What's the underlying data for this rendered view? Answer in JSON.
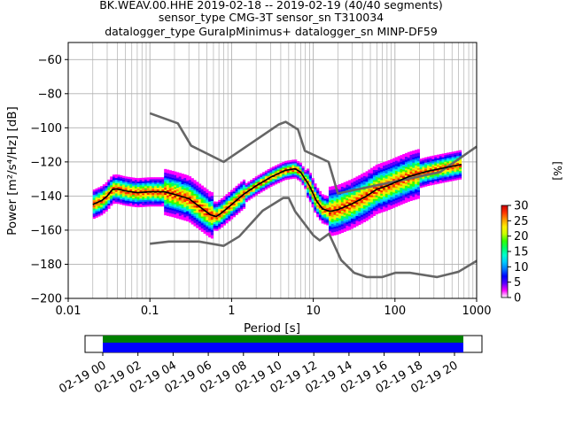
{
  "title_lines": [
    "BK.WEAV.00.HHE   2019-02-18 -- 2019-02-19  (40/40 segments)",
    "sensor_type CMG-3T sensor_sn T310034",
    "datalogger_type GuralpMinimus+ datalogger_sn MINP-DF59"
  ],
  "chart_data": {
    "type": "heatmap",
    "xlabel": "Period [s]",
    "ylabel": "Power [m²/s⁴/Hz] [dB]",
    "x_scale": "log",
    "xlim": [
      0.01,
      1000
    ],
    "ylim": [
      -200,
      -50
    ],
    "x_tick_labels": [
      "0.01",
      "0.1",
      "1",
      "10",
      "100",
      "1000"
    ],
    "x_ticks": [
      0.01,
      0.1,
      1,
      10,
      100,
      1000
    ],
    "y_ticks": [
      -200,
      -180,
      -160,
      -140,
      -120,
      -100,
      -80,
      -60
    ],
    "y_tick_labels": [
      "−200",
      "−180",
      "−160",
      "−140",
      "−120",
      "−100",
      "−80",
      "−60"
    ],
    "grid": true,
    "colorbar": {
      "label": "[%]",
      "ticks": [
        0,
        5,
        10,
        15,
        20,
        25,
        30
      ],
      "tick_labels": [
        "0",
        "5",
        "10",
        "15",
        "20",
        "25",
        "30"
      ],
      "range": [
        0,
        30
      ],
      "colormap": [
        "#ffffff",
        "#ff00ff",
        "#5a00ff",
        "#0000ff",
        "#0077ff",
        "#00ccff",
        "#00ffcc",
        "#00ff66",
        "#33ff00",
        "#ccff00",
        "#ffee00",
        "#ff9900",
        "#ff3300",
        "#cc0000"
      ]
    },
    "noise_model_high": [
      [
        0.1,
        -91.5
      ],
      [
        0.22,
        -97.4
      ],
      [
        0.32,
        -110.5
      ],
      [
        0.8,
        -120
      ],
      [
        3.8,
        -98
      ],
      [
        4.6,
        -96.5
      ],
      [
        6.5,
        -101
      ],
      [
        7.9,
        -113.5
      ],
      [
        15.4,
        -120
      ],
      [
        20,
        -138.5
      ],
      [
        354.8,
        -126
      ],
      [
        1000,
        -111
      ]
    ],
    "noise_model_low": [
      [
        0.1,
        -168
      ],
      [
        0.17,
        -166.7
      ],
      [
        0.4,
        -166.7
      ],
      [
        0.8,
        -169.2
      ],
      [
        1.24,
        -163.7
      ],
      [
        2.4,
        -148.6
      ],
      [
        4.3,
        -141.1
      ],
      [
        5,
        -141.1
      ],
      [
        6,
        -149
      ],
      [
        10,
        -163
      ],
      [
        12,
        -166
      ],
      [
        15.6,
        -162.1
      ],
      [
        21.9,
        -177.5
      ],
      [
        31.6,
        -185
      ],
      [
        45,
        -187.5
      ],
      [
        70,
        -187.5
      ],
      [
        101,
        -185
      ],
      [
        154,
        -185
      ],
      [
        328,
        -187.5
      ],
      [
        600,
        -184.4
      ],
      [
        1000,
        -178
      ]
    ],
    "mean_curve": [
      [
        0.02,
        -145
      ],
      [
        0.026,
        -142.5
      ],
      [
        0.03,
        -140
      ],
      [
        0.035,
        -136
      ],
      [
        0.04,
        -135.8
      ],
      [
        0.05,
        -137
      ],
      [
        0.07,
        -138
      ],
      [
        0.1,
        -137.5
      ],
      [
        0.15,
        -137.5
      ],
      [
        0.2,
        -139
      ],
      [
        0.3,
        -141.5
      ],
      [
        0.4,
        -146
      ],
      [
        0.55,
        -151
      ],
      [
        0.65,
        -152
      ],
      [
        0.75,
        -150
      ],
      [
        1,
        -145
      ],
      [
        1.4,
        -139
      ],
      [
        2,
        -134
      ],
      [
        3,
        -129
      ],
      [
        4.5,
        -125
      ],
      [
        6,
        -124
      ],
      [
        7,
        -126
      ],
      [
        9,
        -134
      ],
      [
        11,
        -143
      ],
      [
        13,
        -147.5
      ],
      [
        16,
        -149
      ],
      [
        20,
        -148
      ],
      [
        30,
        -144.5
      ],
      [
        45,
        -140
      ],
      [
        60,
        -136
      ],
      [
        80,
        -134
      ],
      [
        100,
        -132
      ],
      [
        150,
        -128.5
      ],
      [
        250,
        -125.5
      ],
      [
        400,
        -123.5
      ],
      [
        650,
        -121.5
      ]
    ]
  },
  "time_bar": {
    "tick_labels": [
      "02-19 00",
      "02-19 02",
      "02-19 04",
      "02-19 06",
      "02-19 08",
      "02-19 10",
      "02-19 12",
      "02-19 14",
      "02-19 16",
      "02-19 18",
      "02-19 20"
    ],
    "colors": {
      "upper": "#008000",
      "lower": "#0000ff"
    }
  }
}
